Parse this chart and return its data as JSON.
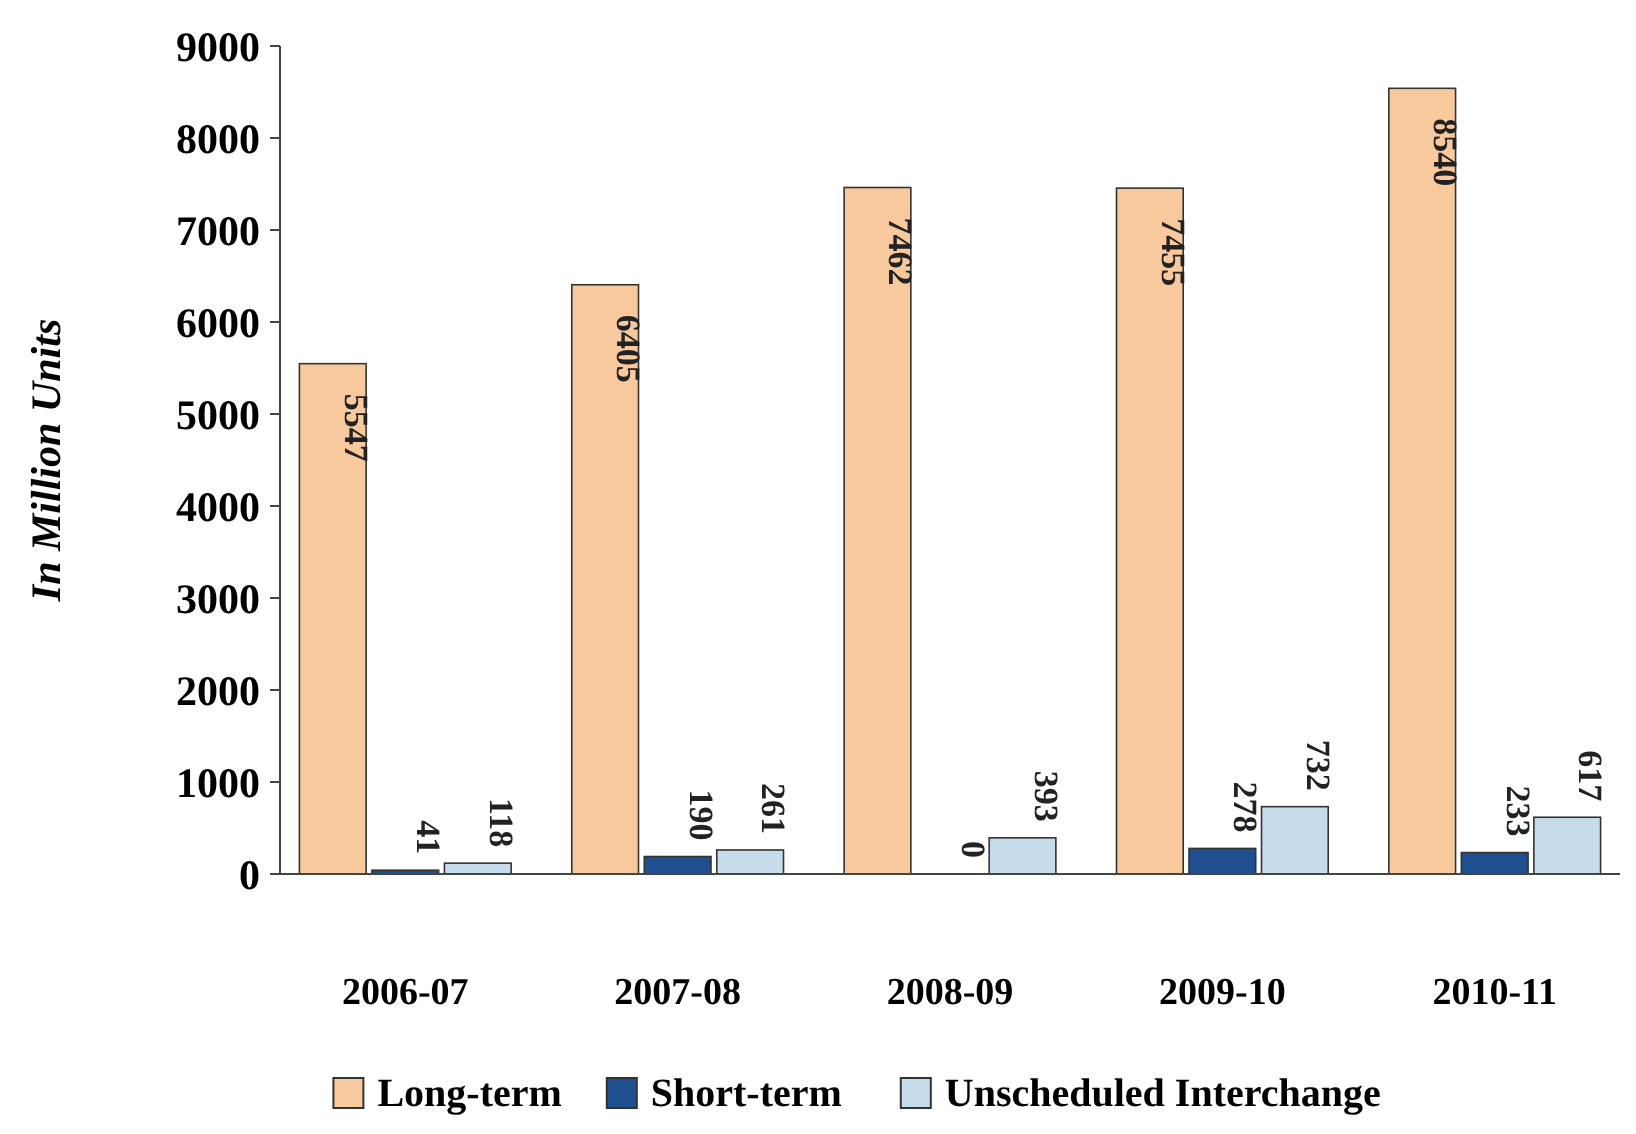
{
  "chart_data": {
    "type": "bar",
    "ylabel": "In Million Units",
    "categories": [
      "2006-07",
      "2007-08",
      "2008-09",
      "2009-10",
      "2010-11"
    ],
    "series": [
      {
        "name": "Long-term",
        "color": "#f7c99c",
        "values": [
          5547,
          6405,
          7462,
          7455,
          8540
        ]
      },
      {
        "name": "Short-term",
        "color": "#1f4f8f",
        "values": [
          41,
          190,
          0,
          278,
          233
        ]
      },
      {
        "name": "Unscheduled Interchange",
        "color": "#c6dcea",
        "values": [
          118,
          261,
          393,
          732,
          617
        ]
      }
    ],
    "ylim": [
      0,
      9000
    ],
    "yticks": [
      0,
      1000,
      2000,
      3000,
      4000,
      5000,
      6000,
      7000,
      8000,
      9000
    ],
    "data_labels": true,
    "legend": "bottom",
    "grid": false
  }
}
